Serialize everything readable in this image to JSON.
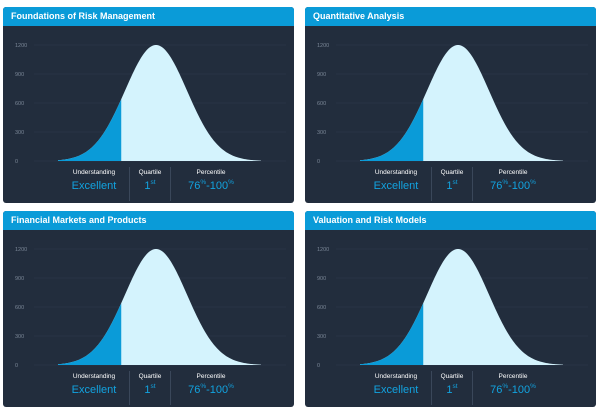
{
  "cards": [
    {
      "title": "Foundations of Risk Management",
      "understanding_label": "Understanding",
      "understanding_value": "Excellent",
      "quartile_label": "Quartile",
      "quartile_value": "1",
      "quartile_suffix": "st",
      "percentile_label": "Percentile",
      "percentile_from": "76",
      "percentile_to": "100",
      "percentile_unit": "%"
    },
    {
      "title": "Quantitative Analysis",
      "understanding_label": "Understanding",
      "understanding_value": "Excellent",
      "quartile_label": "Quartile",
      "quartile_value": "1",
      "quartile_suffix": "st",
      "percentile_label": "Percentile",
      "percentile_from": "76",
      "percentile_to": "100",
      "percentile_unit": "%"
    },
    {
      "title": "Financial Markets and Products",
      "understanding_label": "Understanding",
      "understanding_value": "Excellent",
      "quartile_label": "Quartile",
      "quartile_value": "1",
      "quartile_suffix": "st",
      "percentile_label": "Percentile",
      "percentile_from": "76",
      "percentile_to": "100",
      "percentile_unit": "%"
    },
    {
      "title": "Valuation and Risk Models",
      "understanding_label": "Understanding",
      "understanding_value": "Excellent",
      "quartile_label": "Quartile",
      "quartile_value": "1",
      "quartile_suffix": "st",
      "percentile_label": "Percentile",
      "percentile_from": "76",
      "percentile_to": "100",
      "percentile_unit": "%"
    }
  ],
  "chart": {
    "y_ticks": [
      "1200",
      "900",
      "600",
      "300",
      "0"
    ],
    "y_max": 1200,
    "peak_value": 1200,
    "highlight_boundary_value": 640,
    "colors": {
      "curve_fill": "#d4f3fd",
      "highlight_fill": "#0a9bd8",
      "grid": "#2e3b4e",
      "background": "#222d3d",
      "header": "#0a9bd8",
      "accent_text": "#12a3e0"
    }
  }
}
